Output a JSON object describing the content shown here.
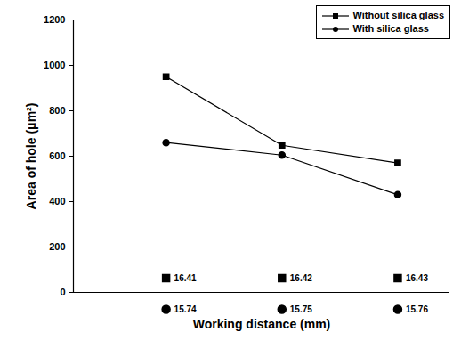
{
  "chart_data": {
    "type": "line",
    "xlabel": "Working distance (mm)",
    "ylabel": "Area of hole (μm²)",
    "ylim": [
      0,
      1200
    ],
    "yticks": [
      0,
      200,
      400,
      600,
      800,
      1000,
      1200
    ],
    "legend": "top-right",
    "series": [
      {
        "name": "Without silica glass",
        "color": "#000000",
        "marker": "square",
        "x": [
          16.41,
          16.42,
          16.43
        ],
        "values": [
          950,
          648,
          570
        ]
      },
      {
        "name": "With silica glass",
        "color": "#000000",
        "marker": "circle",
        "x": [
          15.74,
          15.75,
          15.76
        ],
        "values": [
          660,
          605,
          430
        ]
      }
    ]
  }
}
